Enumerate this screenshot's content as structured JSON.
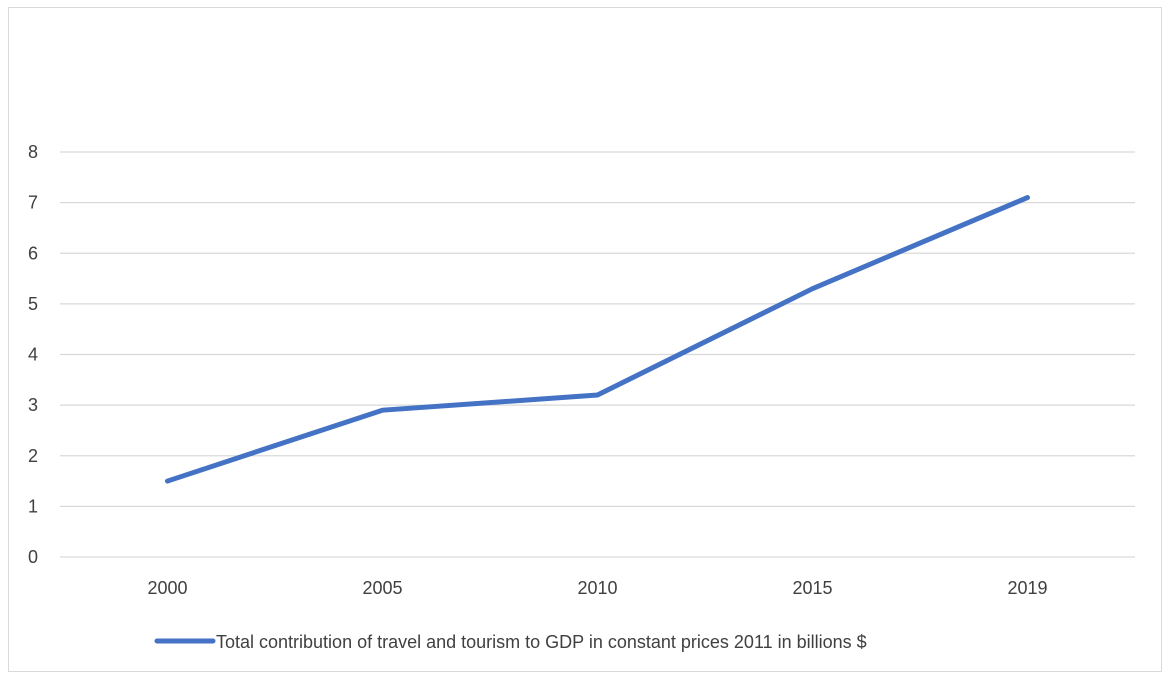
{
  "chart_data": {
    "type": "line",
    "title": "",
    "xlabel": "",
    "ylabel": "",
    "categories": [
      "2000",
      "2005",
      "2010",
      "2015",
      "2019"
    ],
    "series": [
      {
        "name": "Total contribution of travel and tourism to GDP in constant prices 2011 in billions $",
        "values": [
          1.5,
          2.9,
          3.2,
          5.3,
          7.1
        ],
        "color": "#4472c4"
      }
    ],
    "ylim": [
      0,
      8
    ],
    "yticks": [
      "0",
      "1",
      "2",
      "3",
      "4",
      "5",
      "6",
      "7",
      "8"
    ],
    "grid": true,
    "legend_position": "bottom"
  }
}
